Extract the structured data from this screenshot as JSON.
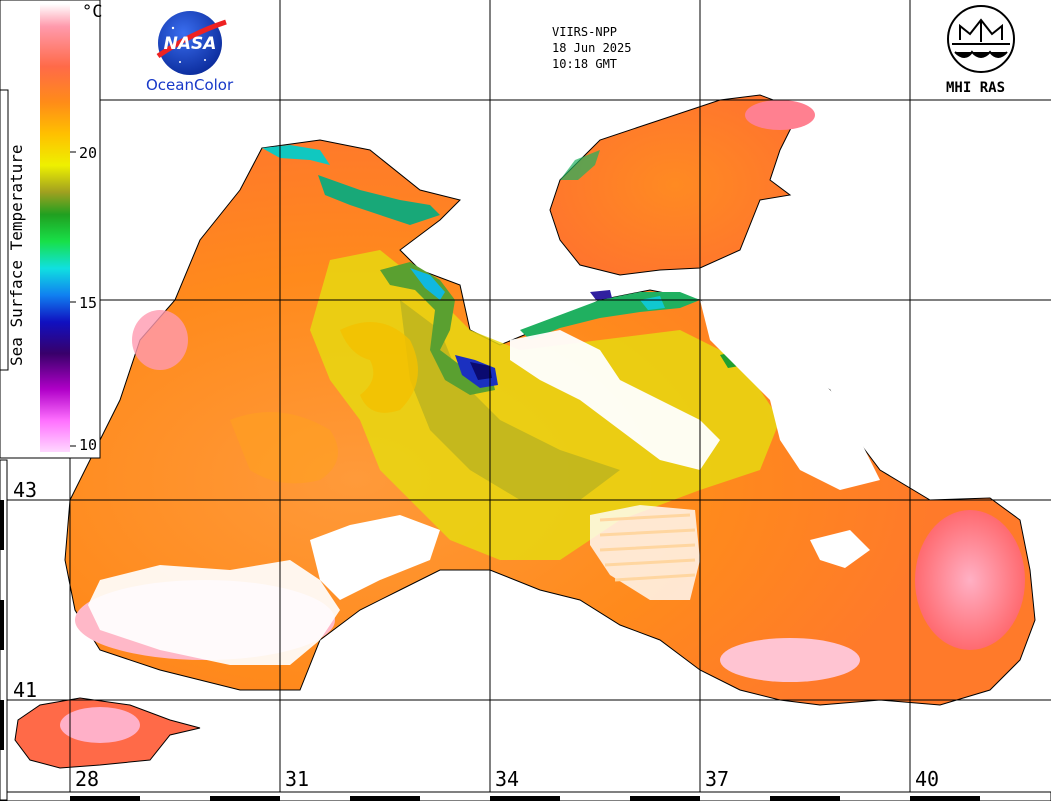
{
  "satellite": {
    "sensor": "VIIRS-NPP",
    "date": "18 Jun 2025",
    "time": "10:18 GMT"
  },
  "logos": {
    "left_caption": "OceanColor",
    "left_mark_text": "NASA",
    "right_caption": "MHI RAS"
  },
  "colorbar": {
    "title": "Sea Surface Temperature",
    "unit": "°C",
    "ticks": [
      "20",
      "15",
      "10"
    ],
    "colors": [
      "#ffffff",
      "#ff8fa8",
      "#ff6d4a",
      "#ff8a1a",
      "#ffb400",
      "#eef000",
      "#9aa020",
      "#2aa828",
      "#14e030",
      "#10e0e0",
      "#1080f0",
      "#1414c0",
      "#400060",
      "#b000c0",
      "#ff80ff",
      "#ffd8ff"
    ]
  },
  "grid": {
    "latitudes": [
      "43",
      "41"
    ],
    "longitudes": [
      "28",
      "31",
      "34",
      "37",
      "40"
    ]
  },
  "palette": {
    "land": "#ffffff",
    "coast": "#000000",
    "cloud": "#ffffff"
  }
}
